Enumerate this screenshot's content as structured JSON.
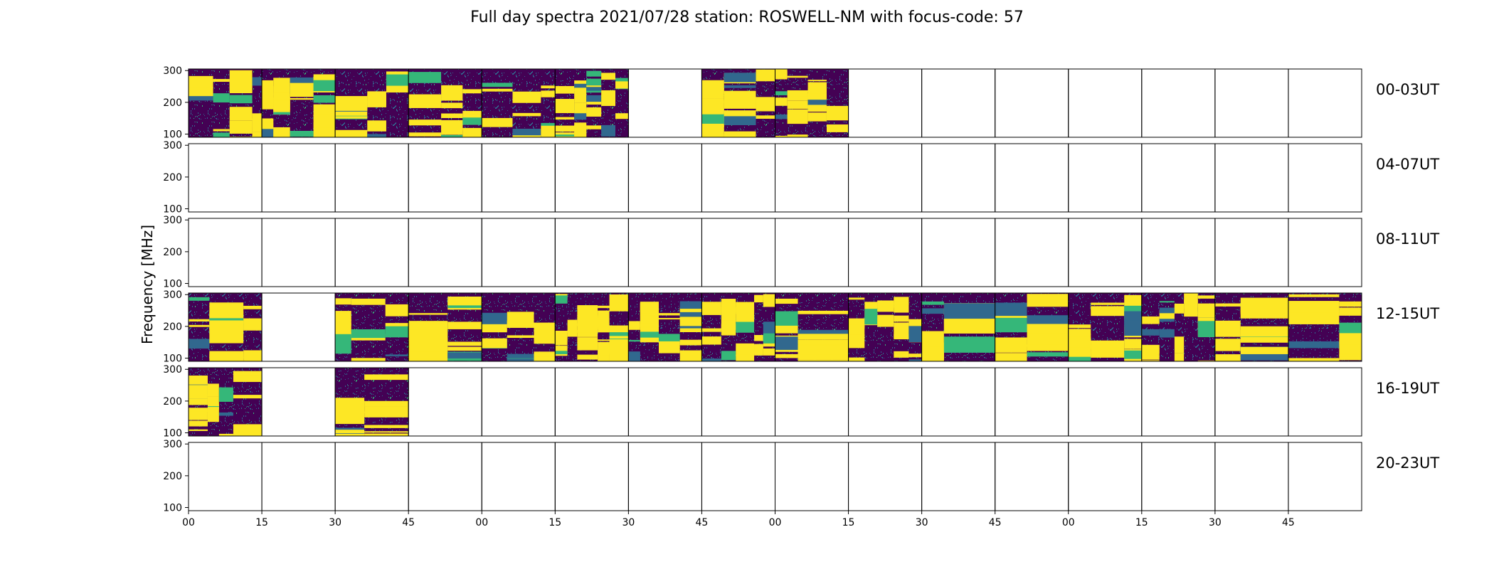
{
  "chart_data": {
    "type": "heatmap",
    "title": "Full day spectra 2021/07/28 station: ROSWELL-NM with focus-code: 57",
    "ylabel": "Frequency [MHz]",
    "xlabel": "",
    "ylim": [
      90,
      305
    ],
    "y_ticks": [
      "300",
      "200",
      "100"
    ],
    "y_tick_values": [
      300,
      200,
      100
    ],
    "x_ticks": [
      "00",
      "15",
      "30",
      "45",
      "00",
      "15",
      "30",
      "45",
      "00",
      "15",
      "30",
      "45",
      "00",
      "15",
      "30",
      "45"
    ],
    "columns_per_row": 16,
    "column_minutes": 15,
    "colormap": [
      "#440154",
      "#31688e",
      "#35b779",
      "#fde725"
    ],
    "rows": [
      {
        "label": "00-03UT",
        "filled": [
          1,
          1,
          1,
          1,
          1,
          1,
          0,
          1,
          1,
          0,
          0,
          0,
          0,
          0,
          0,
          0
        ]
      },
      {
        "label": "04-07UT",
        "filled": [
          0,
          0,
          0,
          0,
          0,
          0,
          0,
          0,
          0,
          0,
          0,
          0,
          0,
          0,
          0,
          0
        ]
      },
      {
        "label": "08-11UT",
        "filled": [
          0,
          0,
          0,
          0,
          0,
          0,
          0,
          0,
          0,
          0,
          0,
          0,
          0,
          0,
          0,
          0
        ]
      },
      {
        "label": "12-15UT",
        "filled": [
          1,
          0,
          1,
          1,
          1,
          1,
          1,
          1,
          1,
          1,
          1,
          1,
          1,
          1,
          1,
          1
        ]
      },
      {
        "label": "16-19UT",
        "filled": [
          1,
          0,
          1,
          0,
          0,
          0,
          0,
          0,
          0,
          0,
          0,
          0,
          0,
          0,
          0,
          0
        ]
      },
      {
        "label": "20-23UT",
        "filled": [
          0,
          0,
          0,
          0,
          0,
          0,
          0,
          0,
          0,
          0,
          0,
          0,
          0,
          0,
          0,
          0
        ]
      }
    ],
    "grid": false,
    "legend": "none"
  }
}
